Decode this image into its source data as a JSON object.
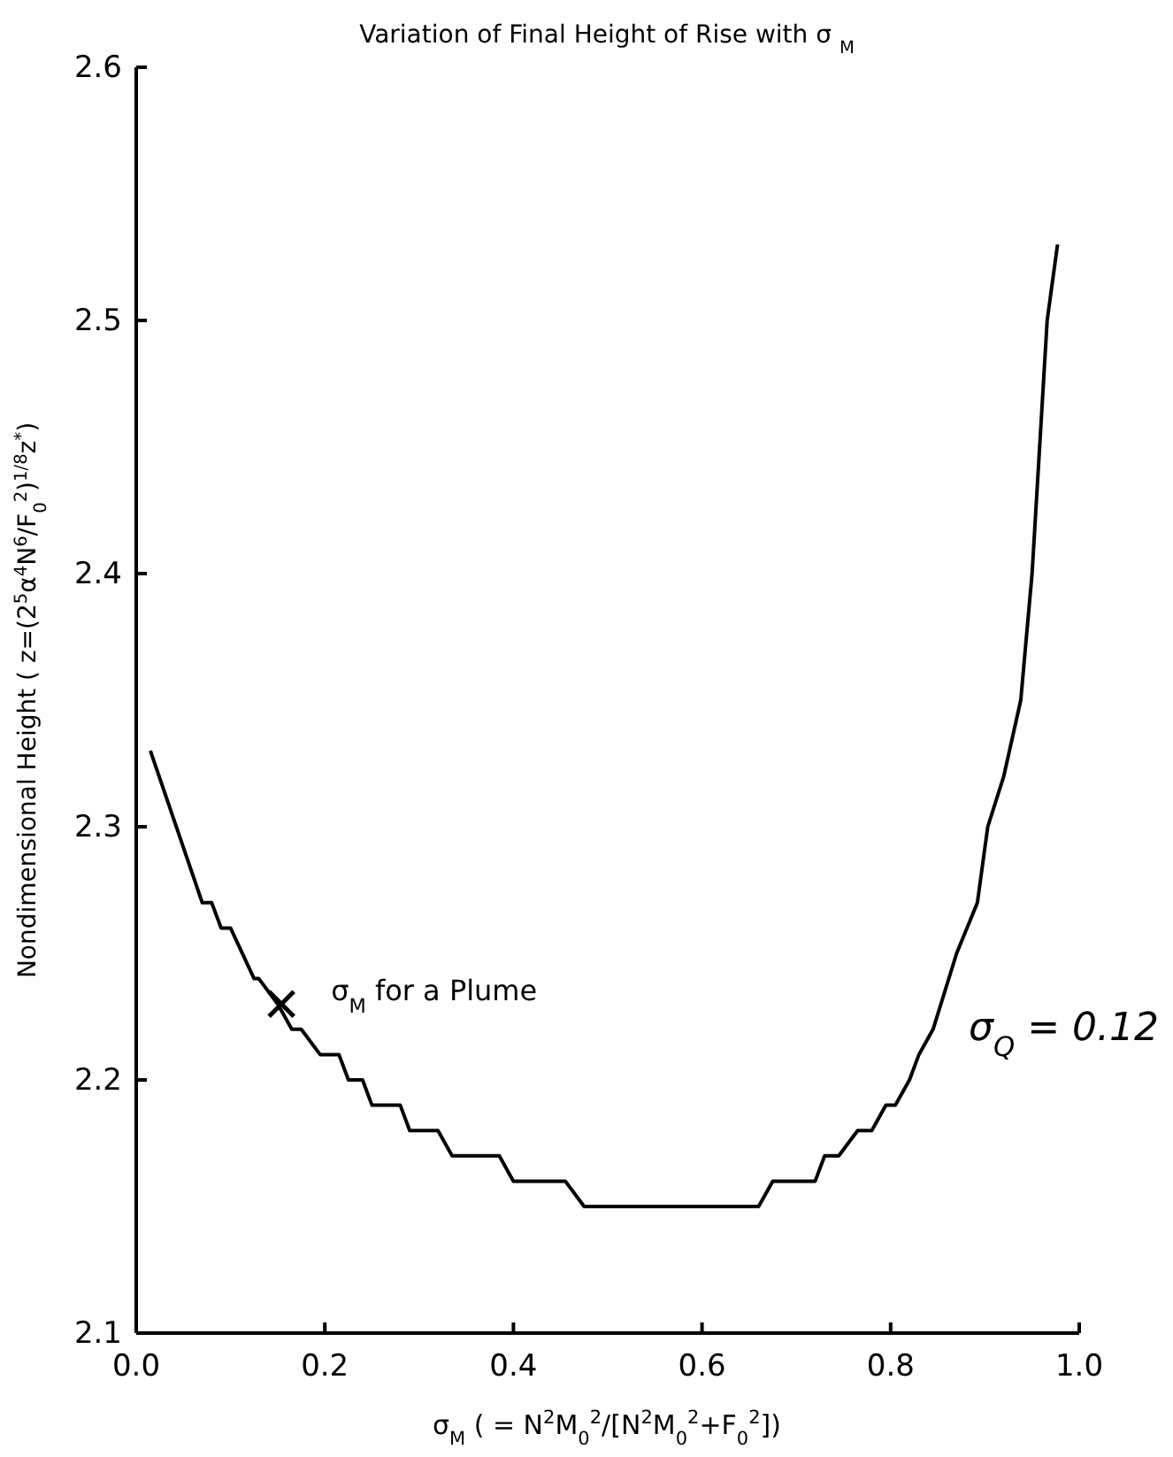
{
  "chart_data": {
    "type": "line",
    "title": "Variation of Final Height of Rise with σ $_{M}$",
    "xlabel": "σ$_{M}$ ( =  N$^{2}$M$_{0}$$^{2}$/[N$^{2}$M$_{0}$$^{2}$+F$_{0}$$^{2}$])",
    "ylabel": "Nondimensional Height ( z=(2$^{5}$α$^{4}$N$^{6}$/F$_{0}$$^{2}$)$^{1/8}$z$^{*}$)",
    "xlim": [
      0,
      1
    ],
    "ylim": [
      2.1,
      2.6
    ],
    "xticks": [
      {
        "value": 0,
        "label": "0.0"
      },
      {
        "value": 0.2,
        "label": "0.2"
      },
      {
        "value": 0.4,
        "label": "0.4"
      },
      {
        "value": 0.6,
        "label": "0.6"
      },
      {
        "value": 0.8,
        "label": "0.8"
      },
      {
        "value": 1,
        "label": "1.0"
      }
    ],
    "yticks": [
      2.1,
      2.2,
      2.3,
      2.4,
      2.5,
      2.6
    ],
    "grid": false,
    "series": [
      {
        "color": "#000000",
        "marker": "none",
        "line_style": "solid",
        "x": [
          0.015,
          0.07,
          0.08,
          0.09,
          0.1,
          0.125,
          0.13,
          0.15,
          0.165,
          0.175,
          0.195,
          0.215,
          0.225,
          0.24,
          0.25,
          0.28,
          0.29,
          0.32,
          0.335,
          0.385,
          0.4,
          0.455,
          0.475,
          0.66,
          0.675,
          0.72,
          0.73,
          0.745,
          0.765,
          0.78,
          0.795,
          0.805,
          0.82,
          0.83,
          0.845,
          0.87,
          0.892,
          0.903,
          0.92,
          0.938,
          0.95,
          0.958,
          0.966,
          0.977
        ],
        "values": [
          2.33,
          2.27,
          2.27,
          2.26,
          2.26,
          2.24,
          2.24,
          2.23,
          2.22,
          2.22,
          2.21,
          2.21,
          2.2,
          2.2,
          2.19,
          2.19,
          2.18,
          2.18,
          2.17,
          2.17,
          2.16,
          2.16,
          2.15,
          2.15,
          2.16,
          2.16,
          2.17,
          2.17,
          2.18,
          2.18,
          2.19,
          2.19,
          2.2,
          2.21,
          2.22,
          2.25,
          2.27,
          2.3,
          2.32,
          2.35,
          2.4,
          2.45,
          2.5,
          2.53
        ]
      },
      {
        "type": "scatter",
        "color": "#000000",
        "marker": "cross",
        "x": [
          0.154
        ],
        "values": [
          2.23
        ]
      }
    ],
    "annotations": [
      {
        "text": "σ$_{M}$ for a Plume",
        "x": 0.154,
        "y": 2.23
      },
      "σ$_{Q}$ = 0.12"
    ]
  }
}
